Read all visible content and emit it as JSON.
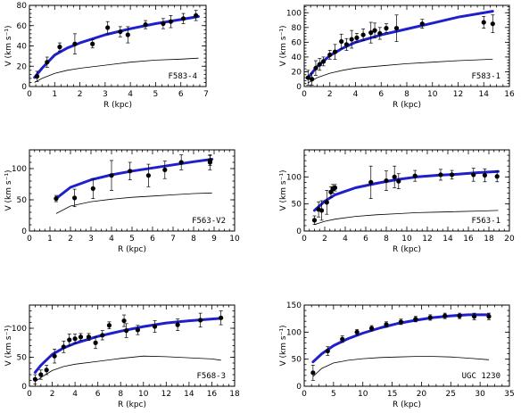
{
  "chart_data": [
    {
      "type": "scatter",
      "galaxy": "F583-4",
      "xlabel": "R (kpc)",
      "ylabel": "V (km s⁻¹)",
      "xlim": [
        0,
        7
      ],
      "ylim": [
        0,
        80
      ],
      "xticks": [
        0,
        1,
        2,
        3,
        4,
        5,
        6,
        7
      ],
      "yticks": [
        0,
        20,
        40,
        60,
        80
      ],
      "observed": {
        "x": [
          0.3,
          0.7,
          1.2,
          1.8,
          2.5,
          3.1,
          3.6,
          3.9,
          4.6,
          5.3,
          5.6,
          6.1,
          6.6
        ],
        "y": [
          10,
          24,
          39,
          42,
          42,
          58,
          54,
          51,
          61,
          62,
          64,
          67,
          70
        ],
        "err": [
          5,
          5,
          4,
          10,
          4,
          6,
          5,
          8,
          4,
          5,
          6,
          5,
          5
        ]
      },
      "model_fit": {
        "x": [
          0.2,
          0.5,
          1.0,
          1.5,
          2.0,
          3.0,
          4.0,
          5.0,
          6.0,
          6.7
        ],
        "y": [
          9,
          18,
          31,
          38,
          43,
          51,
          57,
          62,
          66,
          69
        ]
      },
      "baryons": {
        "x": [
          0.2,
          0.5,
          1.0,
          1.5,
          2.0,
          3.0,
          4.0,
          5.0,
          6.0,
          6.7
        ],
        "y": [
          4,
          8,
          13,
          16,
          18,
          21,
          24,
          26,
          27,
          28
        ]
      }
    },
    {
      "type": "scatter",
      "galaxy": "F583-1",
      "xlabel": "R (kpc)",
      "ylabel": "V (km s⁻¹)",
      "xlim": [
        0,
        16
      ],
      "ylim": [
        0,
        110
      ],
      "xticks": [
        0,
        2,
        4,
        6,
        8,
        10,
        12,
        14,
        16
      ],
      "yticks": [
        0,
        20,
        40,
        60,
        80,
        100
      ],
      "observed": {
        "x": [
          0.3,
          0.6,
          0.9,
          1.2,
          1.5,
          2.0,
          2.4,
          2.9,
          3.3,
          3.7,
          4.1,
          4.6,
          5.2,
          5.5,
          5.9,
          6.4,
          7.2,
          9.2,
          14.0,
          14.7
        ],
        "y": [
          12,
          10,
          25,
          30,
          34,
          43,
          47,
          61,
          57,
          64,
          66,
          70,
          73,
          76,
          72,
          79,
          79,
          85,
          87,
          85
        ],
        "err": [
          10,
          8,
          10,
          8,
          6,
          6,
          10,
          10,
          8,
          12,
          6,
          8,
          14,
          10,
          8,
          6,
          18,
          6,
          8,
          12
        ]
      },
      "model_fit": {
        "x": [
          0.3,
          1.0,
          2.0,
          3.0,
          4.0,
          6.0,
          8.0,
          10.0,
          12.0,
          14.7
        ],
        "y": [
          12,
          27,
          42,
          52,
          60,
          70,
          78,
          86,
          94,
          102
        ]
      },
      "baryons": {
        "x": [
          0.3,
          1.0,
          2.0,
          3.0,
          4.0,
          6.0,
          8.0,
          10.0,
          12.0,
          14.7
        ],
        "y": [
          5,
          12,
          18,
          22,
          25,
          28,
          31,
          33,
          35,
          37
        ]
      }
    },
    {
      "type": "scatter",
      "galaxy": "F563-V2",
      "xlabel": "R (kpc)",
      "ylabel": "V (km s⁻¹)",
      "xlim": [
        0,
        10
      ],
      "ylim": [
        0,
        130
      ],
      "xticks": [
        0,
        1,
        2,
        3,
        4,
        5,
        6,
        7,
        8,
        9,
        10
      ],
      "yticks": [
        0,
        50,
        100
      ],
      "observed": {
        "x": [
          1.3,
          2.2,
          3.1,
          4.0,
          4.9,
          5.8,
          6.6,
          7.4,
          8.8,
          8.8
        ],
        "y": [
          52,
          53,
          68,
          89,
          96,
          89,
          98,
          110,
          110,
          113
        ],
        "err": [
          5,
          14,
          16,
          24,
          14,
          18,
          14,
          12,
          12,
          8
        ]
      },
      "model_fit": {
        "x": [
          1.3,
          2.0,
          3.0,
          4.0,
          5.0,
          6.0,
          7.0,
          8.0,
          8.9
        ],
        "y": [
          52,
          70,
          82,
          90,
          96,
          101,
          106,
          111,
          115
        ]
      },
      "baryons": {
        "x": [
          1.3,
          2.0,
          3.0,
          4.0,
          5.0,
          6.0,
          7.0,
          8.0,
          8.9
        ],
        "y": [
          28,
          40,
          47,
          51,
          54,
          56,
          58,
          60,
          61
        ]
      }
    },
    {
      "type": "scatter",
      "galaxy": "F563-1",
      "xlabel": "R (kpc)",
      "ylabel": "V (km s⁻¹)",
      "xlim": [
        0,
        20
      ],
      "ylim": [
        0,
        150
      ],
      "xticks": [
        0,
        2,
        4,
        6,
        8,
        10,
        12,
        14,
        16,
        18,
        20
      ],
      "yticks": [
        0,
        50,
        100
      ],
      "observed": {
        "x": [
          1.0,
          1.4,
          1.7,
          2.2,
          2.6,
          2.8,
          3.0,
          6.5,
          8.0,
          8.8,
          9.2,
          10.8,
          13.3,
          14.4,
          16.5,
          17.6,
          18.8
        ],
        "y": [
          20,
          40,
          38,
          53,
          72,
          78,
          80,
          90,
          93,
          100,
          92,
          102,
          104,
          104,
          104,
          103,
          101
        ],
        "err": [
          8,
          14,
          18,
          22,
          10,
          8,
          6,
          30,
          18,
          20,
          14,
          10,
          10,
          8,
          12,
          12,
          10
        ]
      },
      "model_fit": {
        "x": [
          1.0,
          2.0,
          3.0,
          5.0,
          7.0,
          9.0,
          11.0,
          13.0,
          15.0,
          17.0,
          18.9
        ],
        "y": [
          38,
          55,
          67,
          80,
          88,
          95,
          100,
          103,
          105,
          108,
          110
        ]
      },
      "baryons": {
        "x": [
          1.0,
          2.0,
          3.0,
          5.0,
          7.0,
          9.0,
          11.0,
          13.0,
          15.0,
          17.0,
          18.9
        ],
        "y": [
          12,
          18,
          22,
          27,
          30,
          32,
          34,
          35,
          36,
          37,
          38
        ]
      }
    },
    {
      "type": "scatter",
      "galaxy": "F568-3",
      "xlabel": "R (kpc)",
      "ylabel": "V (km s⁻¹)",
      "xlim": [
        0,
        18
      ],
      "ylim": [
        0,
        140
      ],
      "xticks": [
        0,
        2,
        4,
        6,
        8,
        10,
        12,
        14,
        16,
        18
      ],
      "yticks": [
        0,
        50,
        100
      ],
      "observed": {
        "x": [
          0.5,
          1.0,
          1.5,
          2.2,
          3.0,
          3.5,
          4.0,
          4.5,
          5.2,
          5.8,
          6.4,
          7.0,
          8.3,
          8.5,
          9.5,
          11.0,
          13.0,
          15.0,
          16.8
        ],
        "y": [
          12,
          20,
          28,
          52,
          68,
          80,
          82,
          85,
          85,
          75,
          88,
          105,
          113,
          96,
          97,
          103,
          106,
          114,
          118
        ],
        "err": [
          8,
          8,
          8,
          12,
          10,
          10,
          8,
          6,
          6,
          10,
          8,
          6,
          10,
          12,
          8,
          10,
          10,
          12,
          12
        ]
      },
      "model_fit": {
        "x": [
          0.5,
          1.0,
          2.0,
          3.0,
          4.0,
          6.0,
          8.0,
          10.0,
          12.0,
          14.0,
          16.0,
          16.8
        ],
        "y": [
          24,
          36,
          55,
          66,
          74,
          86,
          95,
          103,
          109,
          113,
          116,
          117
        ]
      },
      "baryons": {
        "x": [
          0.5,
          1.0,
          2.0,
          3.0,
          4.0,
          6.0,
          8.0,
          10.0,
          12.0,
          14.0,
          16.0,
          16.8
        ],
        "y": [
          8,
          15,
          27,
          34,
          38,
          43,
          48,
          52,
          51,
          49,
          47,
          45
        ]
      }
    },
    {
      "type": "scatter",
      "galaxy": "UGC 1230",
      "xlabel": "R (kpc)",
      "ylabel": "V (km s⁻¹)",
      "xlim": [
        0,
        35
      ],
      "ylim": [
        0,
        150
      ],
      "xticks": [
        0,
        5,
        10,
        15,
        20,
        25,
        30,
        35
      ],
      "yticks": [
        0,
        50,
        100,
        150
      ],
      "observed": {
        "x": [
          1.5,
          4.0,
          6.5,
          9.0,
          11.5,
          14.0,
          16.5,
          19.0,
          21.5,
          24.0,
          26.5,
          29.0,
          31.5
        ],
        "y": [
          25,
          65,
          87,
          100,
          107,
          114,
          119,
          124,
          127,
          130,
          130,
          129,
          129
        ],
        "err": [
          14,
          8,
          6,
          5,
          5,
          5,
          5,
          5,
          5,
          5,
          5,
          6,
          6
        ]
      },
      "model_fit": {
        "x": [
          1.5,
          3.0,
          5.0,
          7.5,
          10.0,
          13.0,
          16.0,
          19.0,
          22.0,
          25.0,
          28.0,
          31.5
        ],
        "y": [
          45,
          60,
          75,
          88,
          98,
          108,
          116,
          122,
          127,
          130,
          132,
          132
        ]
      },
      "baryons": {
        "x": [
          1.5,
          3.0,
          5.0,
          7.5,
          10.0,
          13.0,
          16.0,
          19.0,
          22.0,
          25.0,
          28.0,
          31.5
        ],
        "y": [
          18,
          33,
          43,
          48,
          51,
          53,
          54,
          55,
          55,
          54,
          52,
          49
        ]
      }
    }
  ]
}
